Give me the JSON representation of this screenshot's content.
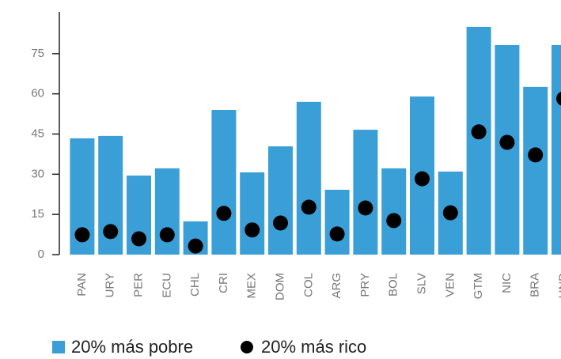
{
  "chart_data": {
    "type": "bar",
    "categories": [
      "PAN",
      "URY",
      "PER",
      "ECU",
      "CHL",
      "CRI",
      "MEX",
      "DOM",
      "COL",
      "ARG",
      "PRY",
      "BOL",
      "SLV",
      "VEN",
      "GTM",
      "NIC",
      "BRA",
      "HND"
    ],
    "series": [
      {
        "name": "20% más pobre",
        "color": "#3a9fd6",
        "values": [
          43.4,
          44.3,
          29.5,
          32.2,
          12.4,
          54,
          30.7,
          40.4,
          57,
          24.2,
          46.6,
          32.2,
          59,
          31,
          85,
          78.2,
          62.6,
          78.2
        ]
      },
      {
        "name": "20% más rico",
        "color": "#000000",
        "values": [
          7.4,
          8.6,
          5.9,
          7.4,
          3.2,
          15.4,
          9.2,
          11.8,
          17.7,
          7.7,
          17.4,
          12.7,
          28.3,
          15.6,
          45.8,
          41.9,
          37.2,
          58.2
        ]
      }
    ],
    "ylim": [
      0,
      90
    ],
    "yticks": [
      0,
      15,
      30,
      45,
      60,
      75
    ]
  }
}
